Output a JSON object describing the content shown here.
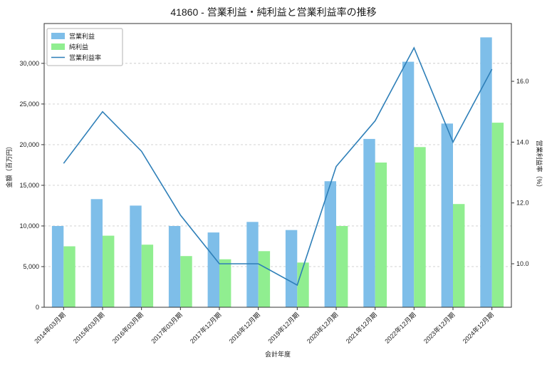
{
  "chart_data": {
    "type": "bar+line",
    "title": "41860 - 営業利益・純利益と営業利益率の推移",
    "xlabel": "会計年度",
    "ylabel_left": "金額（百万円）",
    "ylabel_right": "営業利益率（%）",
    "categories": [
      "2014年03月期",
      "2015年03月期",
      "2016年03月期",
      "2017年03月期",
      "2017年12月期",
      "2018年12月期",
      "2019年12月期",
      "2020年12月期",
      "2021年12月期",
      "2022年12月期",
      "2023年12月期",
      "2024年12月期"
    ],
    "series": [
      {
        "name": "営業利益",
        "type": "bar",
        "axis": "left",
        "color": "#7ebee9",
        "values": [
          10000,
          13300,
          12500,
          10000,
          9200,
          10500,
          9500,
          15500,
          20700,
          30200,
          22600,
          33200
        ]
      },
      {
        "name": "純利益",
        "type": "bar",
        "axis": "left",
        "color": "#90ee90",
        "values": [
          7500,
          8800,
          7700,
          6300,
          5900,
          6900,
          5500,
          10000,
          17800,
          19700,
          12700,
          22700
        ]
      },
      {
        "name": "営業利益率",
        "type": "line",
        "axis": "right",
        "color": "#2e7fb8",
        "values": [
          13.3,
          15.0,
          13.7,
          11.6,
          10.0,
          10.0,
          9.3,
          13.2,
          14.7,
          17.1,
          14.0,
          16.4
        ]
      }
    ],
    "left_axis": {
      "min": 0,
      "max": 34900,
      "tick_values": [
        0,
        5000,
        10000,
        15000,
        20000,
        25000,
        30000
      ],
      "tick_labels": [
        "0",
        "5,000",
        "10,000",
        "15,000",
        "20,000",
        "25,000",
        "30,000"
      ]
    },
    "right_axis": {
      "min": 8.57,
      "max": 17.9,
      "tick_values": [
        10.0,
        12.0,
        14.0,
        16.0
      ],
      "tick_labels": [
        "10.0",
        "12.0",
        "14.0",
        "16.0"
      ]
    },
    "grid": "horizontal-dashed",
    "legend_position": "upper-left",
    "colors": {
      "grid": "#cccccc",
      "spine": "#333333",
      "legend_border": "#b3b3b3",
      "background": "#ffffff"
    }
  }
}
